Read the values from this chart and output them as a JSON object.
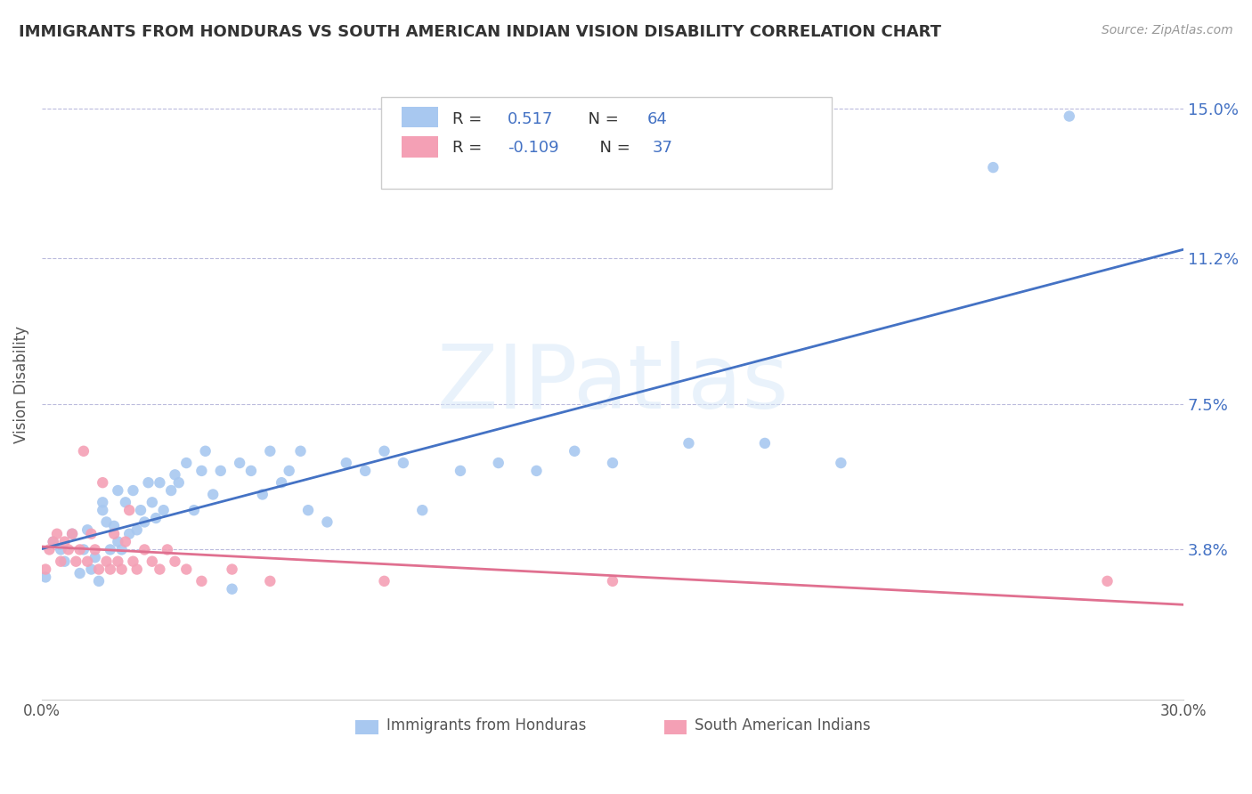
{
  "title": "IMMIGRANTS FROM HONDURAS VS SOUTH AMERICAN INDIAN VISION DISABILITY CORRELATION CHART",
  "source": "Source: ZipAtlas.com",
  "ylabel": "Vision Disability",
  "xlim": [
    0.0,
    0.3
  ],
  "ylim": [
    0.0,
    0.16
  ],
  "yticks": [
    0.038,
    0.075,
    0.112,
    0.15
  ],
  "ytick_labels": [
    "3.8%",
    "7.5%",
    "11.2%",
    "15.0%"
  ],
  "xticks": [
    0.0,
    0.3
  ],
  "xtick_labels": [
    "0.0%",
    "30.0%"
  ],
  "color_blue": "#A8C8F0",
  "color_pink": "#F4A0B5",
  "line_color_blue": "#4472C4",
  "line_color_pink": "#E07090",
  "watermark": "ZIPatlas",
  "blue_scatter": [
    [
      0.001,
      0.031
    ],
    [
      0.003,
      0.04
    ],
    [
      0.005,
      0.038
    ],
    [
      0.006,
      0.035
    ],
    [
      0.008,
      0.042
    ],
    [
      0.01,
      0.032
    ],
    [
      0.011,
      0.038
    ],
    [
      0.012,
      0.043
    ],
    [
      0.013,
      0.033
    ],
    [
      0.014,
      0.036
    ],
    [
      0.015,
      0.03
    ],
    [
      0.016,
      0.048
    ],
    [
      0.016,
      0.05
    ],
    [
      0.017,
      0.045
    ],
    [
      0.018,
      0.038
    ],
    [
      0.019,
      0.044
    ],
    [
      0.02,
      0.04
    ],
    [
      0.02,
      0.053
    ],
    [
      0.021,
      0.038
    ],
    [
      0.022,
      0.05
    ],
    [
      0.023,
      0.042
    ],
    [
      0.024,
      0.053
    ],
    [
      0.025,
      0.043
    ],
    [
      0.026,
      0.048
    ],
    [
      0.027,
      0.045
    ],
    [
      0.028,
      0.055
    ],
    [
      0.029,
      0.05
    ],
    [
      0.03,
      0.046
    ],
    [
      0.031,
      0.055
    ],
    [
      0.032,
      0.048
    ],
    [
      0.034,
      0.053
    ],
    [
      0.035,
      0.057
    ],
    [
      0.036,
      0.055
    ],
    [
      0.038,
      0.06
    ],
    [
      0.04,
      0.048
    ],
    [
      0.042,
      0.058
    ],
    [
      0.043,
      0.063
    ],
    [
      0.045,
      0.052
    ],
    [
      0.047,
      0.058
    ],
    [
      0.05,
      0.028
    ],
    [
      0.052,
      0.06
    ],
    [
      0.055,
      0.058
    ],
    [
      0.058,
      0.052
    ],
    [
      0.06,
      0.063
    ],
    [
      0.063,
      0.055
    ],
    [
      0.065,
      0.058
    ],
    [
      0.068,
      0.063
    ],
    [
      0.07,
      0.048
    ],
    [
      0.075,
      0.045
    ],
    [
      0.08,
      0.06
    ],
    [
      0.085,
      0.058
    ],
    [
      0.09,
      0.063
    ],
    [
      0.095,
      0.06
    ],
    [
      0.1,
      0.048
    ],
    [
      0.11,
      0.058
    ],
    [
      0.12,
      0.06
    ],
    [
      0.13,
      0.058
    ],
    [
      0.14,
      0.063
    ],
    [
      0.15,
      0.06
    ],
    [
      0.17,
      0.065
    ],
    [
      0.19,
      0.065
    ],
    [
      0.21,
      0.06
    ],
    [
      0.25,
      0.135
    ],
    [
      0.27,
      0.148
    ]
  ],
  "pink_scatter": [
    [
      0.001,
      0.033
    ],
    [
      0.002,
      0.038
    ],
    [
      0.003,
      0.04
    ],
    [
      0.004,
      0.042
    ],
    [
      0.005,
      0.035
    ],
    [
      0.006,
      0.04
    ],
    [
      0.007,
      0.038
    ],
    [
      0.008,
      0.042
    ],
    [
      0.009,
      0.035
    ],
    [
      0.01,
      0.038
    ],
    [
      0.011,
      0.063
    ],
    [
      0.012,
      0.035
    ],
    [
      0.013,
      0.042
    ],
    [
      0.014,
      0.038
    ],
    [
      0.015,
      0.033
    ],
    [
      0.016,
      0.055
    ],
    [
      0.017,
      0.035
    ],
    [
      0.018,
      0.033
    ],
    [
      0.019,
      0.042
    ],
    [
      0.02,
      0.035
    ],
    [
      0.021,
      0.033
    ],
    [
      0.022,
      0.04
    ],
    [
      0.023,
      0.048
    ],
    [
      0.024,
      0.035
    ],
    [
      0.025,
      0.033
    ],
    [
      0.027,
      0.038
    ],
    [
      0.029,
      0.035
    ],
    [
      0.031,
      0.033
    ],
    [
      0.033,
      0.038
    ],
    [
      0.035,
      0.035
    ],
    [
      0.038,
      0.033
    ],
    [
      0.042,
      0.03
    ],
    [
      0.05,
      0.033
    ],
    [
      0.06,
      0.03
    ],
    [
      0.09,
      0.03
    ],
    [
      0.15,
      0.03
    ],
    [
      0.28,
      0.03
    ]
  ]
}
